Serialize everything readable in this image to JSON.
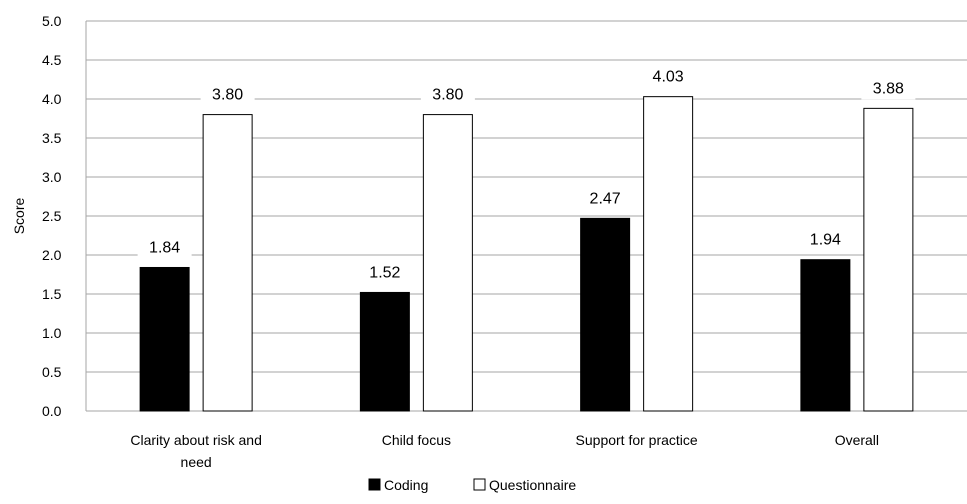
{
  "chart_data": {
    "type": "bar",
    "title": "",
    "xlabel": "",
    "ylabel": "Score",
    "ylim": [
      0,
      5
    ],
    "y_ticks": [
      "0.0",
      "0.5",
      "1.0",
      "1.5",
      "2.0",
      "2.5",
      "3.0",
      "3.5",
      "4.0",
      "4.5",
      "5.0"
    ],
    "grid": true,
    "legend_position": "bottom",
    "categories": [
      [
        "Clarity about risk and",
        "need"
      ],
      [
        "Child focus"
      ],
      [
        "Support for practice"
      ],
      [
        "Overall"
      ]
    ],
    "series": [
      {
        "name": "Coding",
        "color": "#000000",
        "values": [
          1.84,
          1.52,
          2.47,
          1.94
        ],
        "labels": [
          "1.84",
          "1.52",
          "2.47",
          "1.94"
        ]
      },
      {
        "name": "Questionnaire",
        "color": "#ffffff",
        "values": [
          3.8,
          3.8,
          4.03,
          3.88
        ],
        "labels": [
          "3.80",
          "3.80",
          "4.03",
          "3.88"
        ]
      }
    ]
  }
}
